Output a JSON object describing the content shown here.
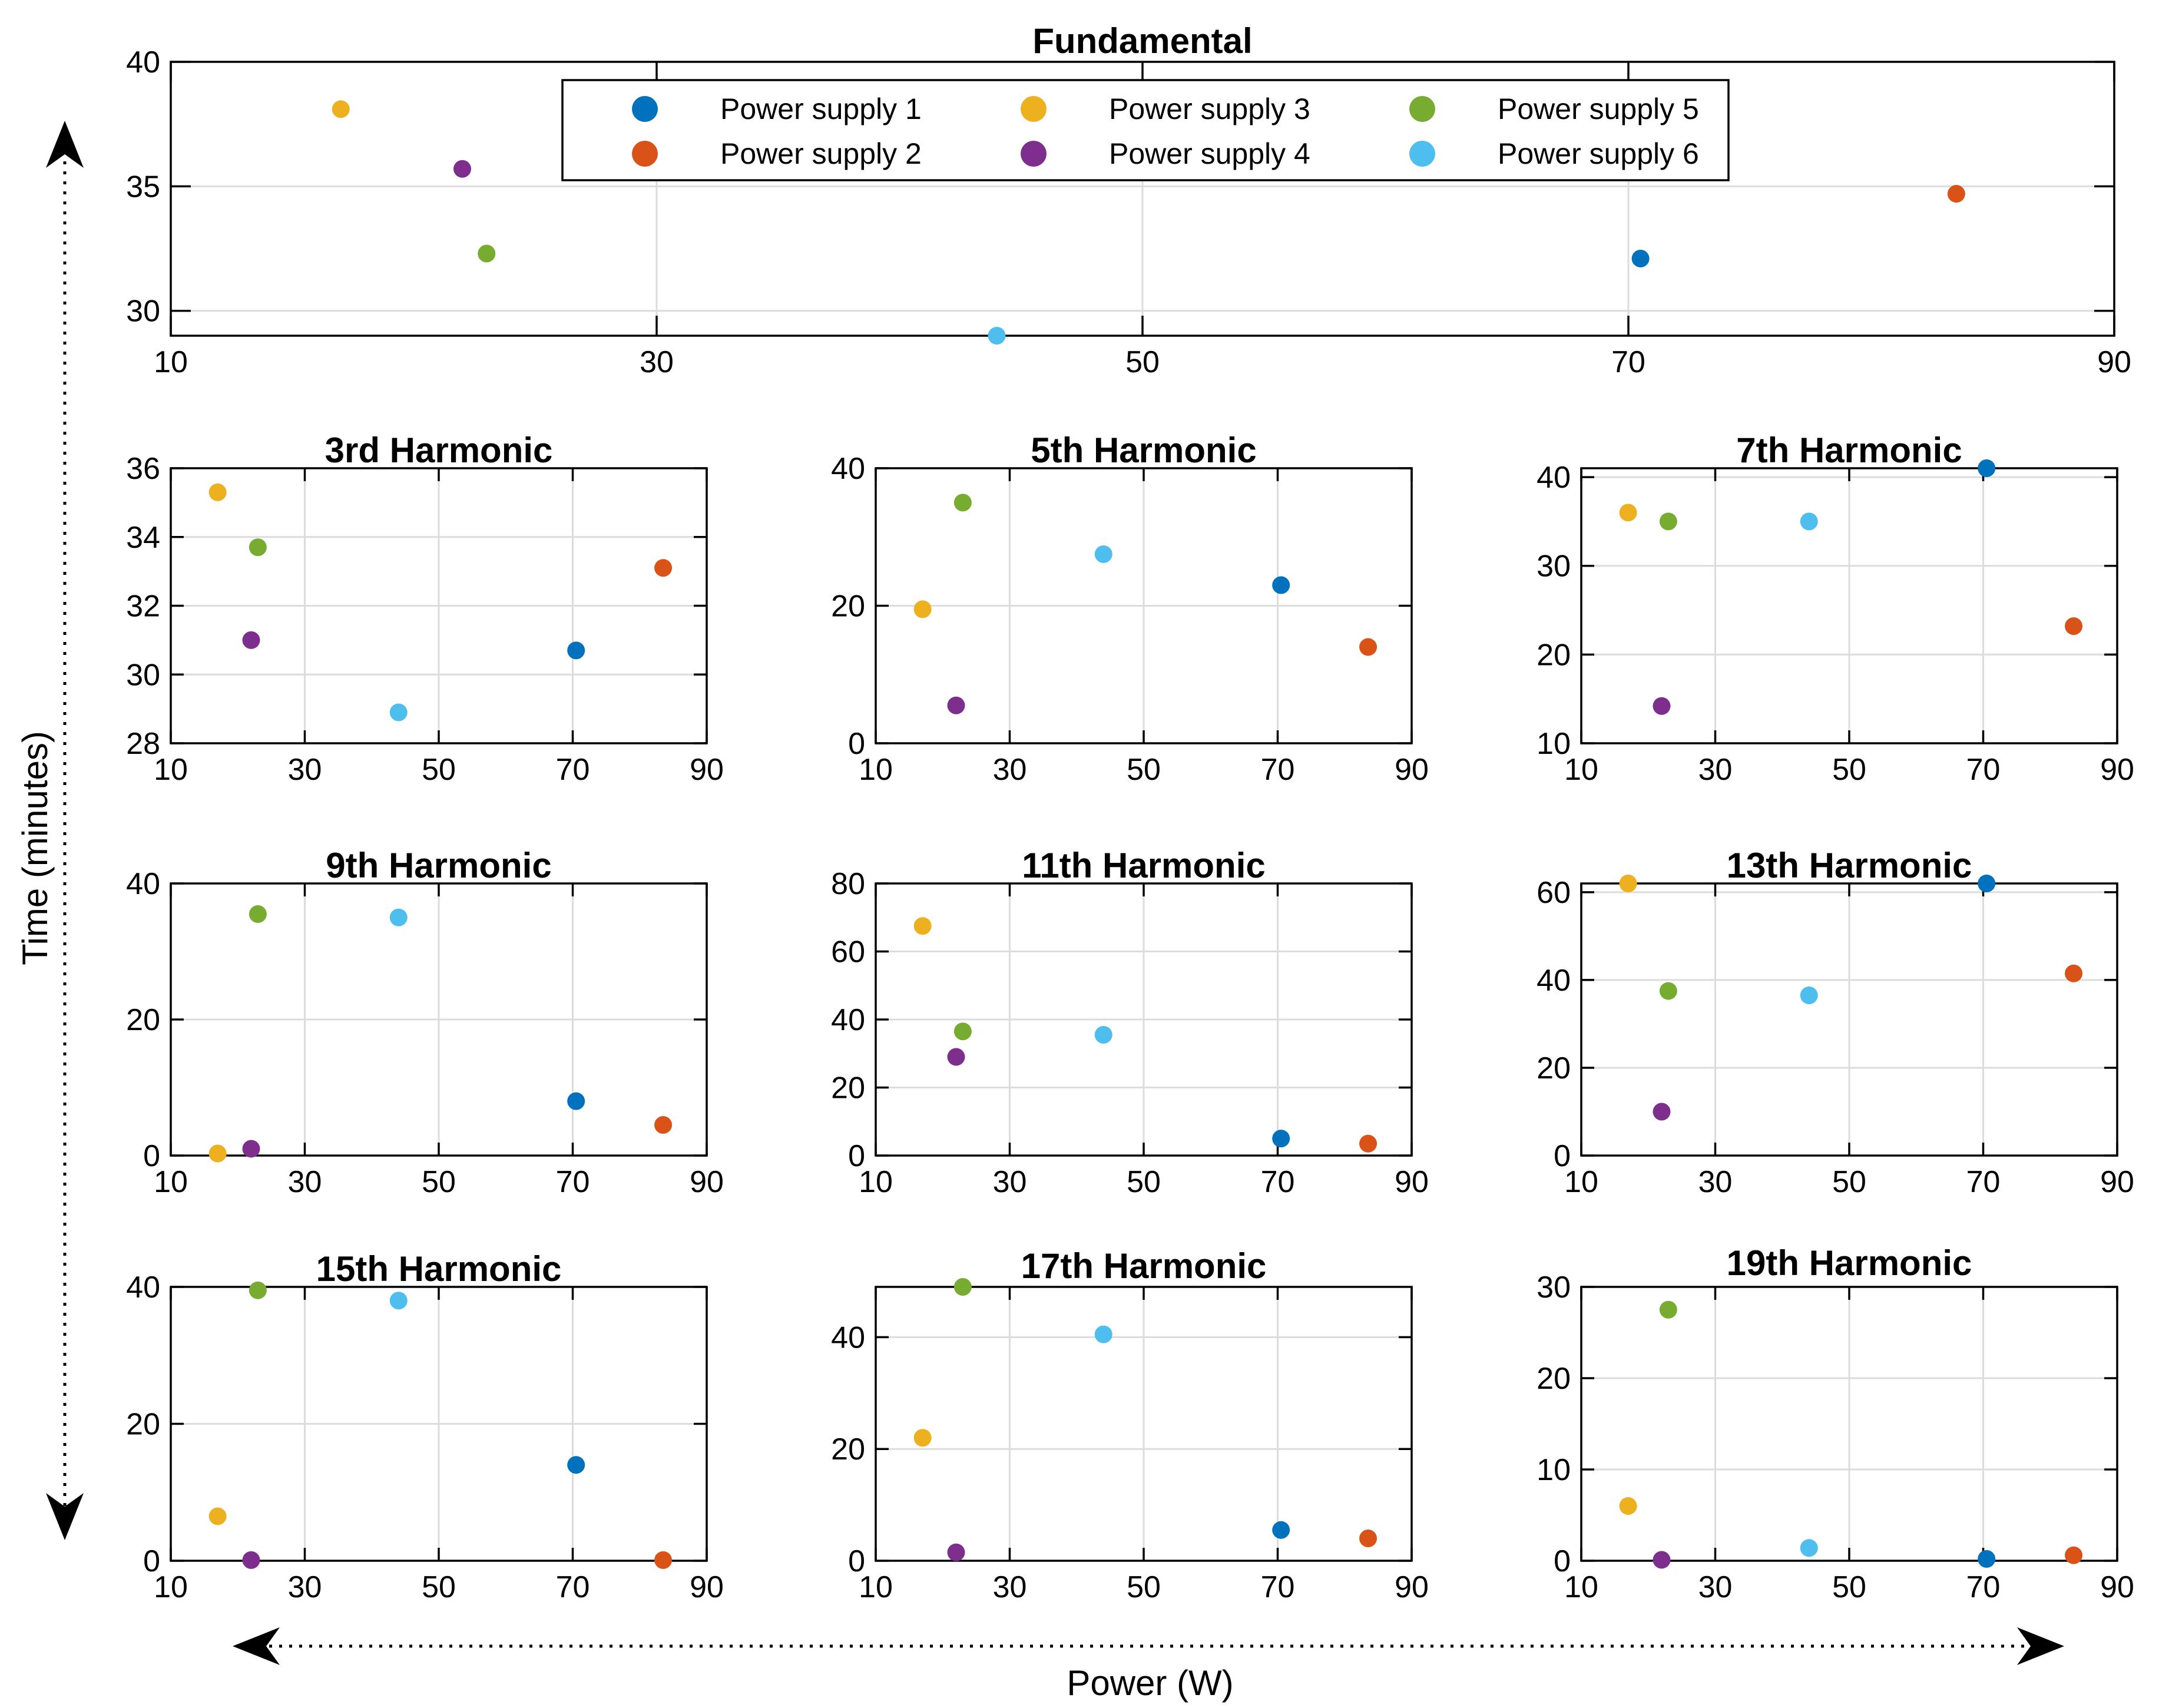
{
  "chart_data": {
    "type": "scatter",
    "xlabel": "Power (W)",
    "ylabel": "Time (minutes)",
    "x_ticks": [
      "10",
      "30",
      "50",
      "70",
      "90"
    ],
    "xlim": [
      10,
      90
    ],
    "legend_position": "top-center",
    "series": [
      {
        "name": "Power supply 1",
        "color": "#0072BD",
        "x": 70.5
      },
      {
        "name": "Power supply 2",
        "color": "#D95319",
        "x": 83.5
      },
      {
        "name": "Power supply 3",
        "color": "#EDB120",
        "x": 17
      },
      {
        "name": "Power supply 4",
        "color": "#7E2F8E",
        "x": 22
      },
      {
        "name": "Power supply 5",
        "color": "#77AC30",
        "x": 23
      },
      {
        "name": "Power supply 6",
        "color": "#4DBEEE",
        "x": 44
      }
    ],
    "panels": [
      {
        "title": "Fundamental",
        "ylim": [
          29,
          40
        ],
        "y_ticks": [
          "30",
          "35",
          "40"
        ],
        "y": [
          32.1,
          34.7,
          38.1,
          35.7,
          32.3,
          29.0
        ]
      },
      {
        "title": "3rd Harmonic",
        "ylim": [
          28,
          36
        ],
        "y_ticks": [
          "28",
          "30",
          "32",
          "34",
          "36"
        ],
        "y": [
          30.7,
          33.1,
          35.3,
          31.0,
          33.7,
          28.9
        ]
      },
      {
        "title": "5th Harmonic",
        "ylim": [
          0,
          40
        ],
        "y_ticks": [
          "0",
          "20",
          "40"
        ],
        "y": [
          23,
          14,
          19.5,
          5.5,
          35,
          27.5
        ]
      },
      {
        "title": "7th Harmonic",
        "ylim": [
          10,
          41
        ],
        "y_ticks": [
          "10",
          "20",
          "30",
          "40"
        ],
        "y": [
          41,
          23.2,
          36,
          14.2,
          35,
          35
        ]
      },
      {
        "title": "9th Harmonic",
        "ylim": [
          0,
          40
        ],
        "y_ticks": [
          "0",
          "20",
          "40"
        ],
        "y": [
          8,
          4.5,
          0.3,
          1,
          35.5,
          35
        ]
      },
      {
        "title": "11th Harmonic",
        "ylim": [
          0,
          80
        ],
        "y_ticks": [
          "0",
          "20",
          "40",
          "60",
          "80"
        ],
        "y": [
          5,
          3.5,
          67.5,
          29,
          36.5,
          35.5
        ]
      },
      {
        "title": "13th Harmonic",
        "ylim": [
          0,
          62
        ],
        "y_ticks": [
          "0",
          "20",
          "40",
          "60"
        ],
        "y": [
          62,
          41.5,
          62,
          10,
          37.5,
          36.5
        ]
      },
      {
        "title": "15th Harmonic",
        "ylim": [
          0,
          40
        ],
        "y_ticks": [
          "0",
          "20",
          "40"
        ],
        "y": [
          14,
          0.1,
          6.5,
          0.1,
          39.5,
          38
        ]
      },
      {
        "title": "17th Harmonic",
        "ylim": [
          0,
          49
        ],
        "y_ticks": [
          "0",
          "20",
          "40"
        ],
        "y": [
          5.5,
          4,
          22,
          1.5,
          49,
          40.5
        ]
      },
      {
        "title": "19th Harmonic",
        "ylim": [
          0,
          30
        ],
        "y_ticks": [
          "0",
          "10",
          "20",
          "30"
        ],
        "y": [
          0.2,
          0.6,
          6,
          0.1,
          27.5,
          1.4
        ]
      }
    ]
  }
}
